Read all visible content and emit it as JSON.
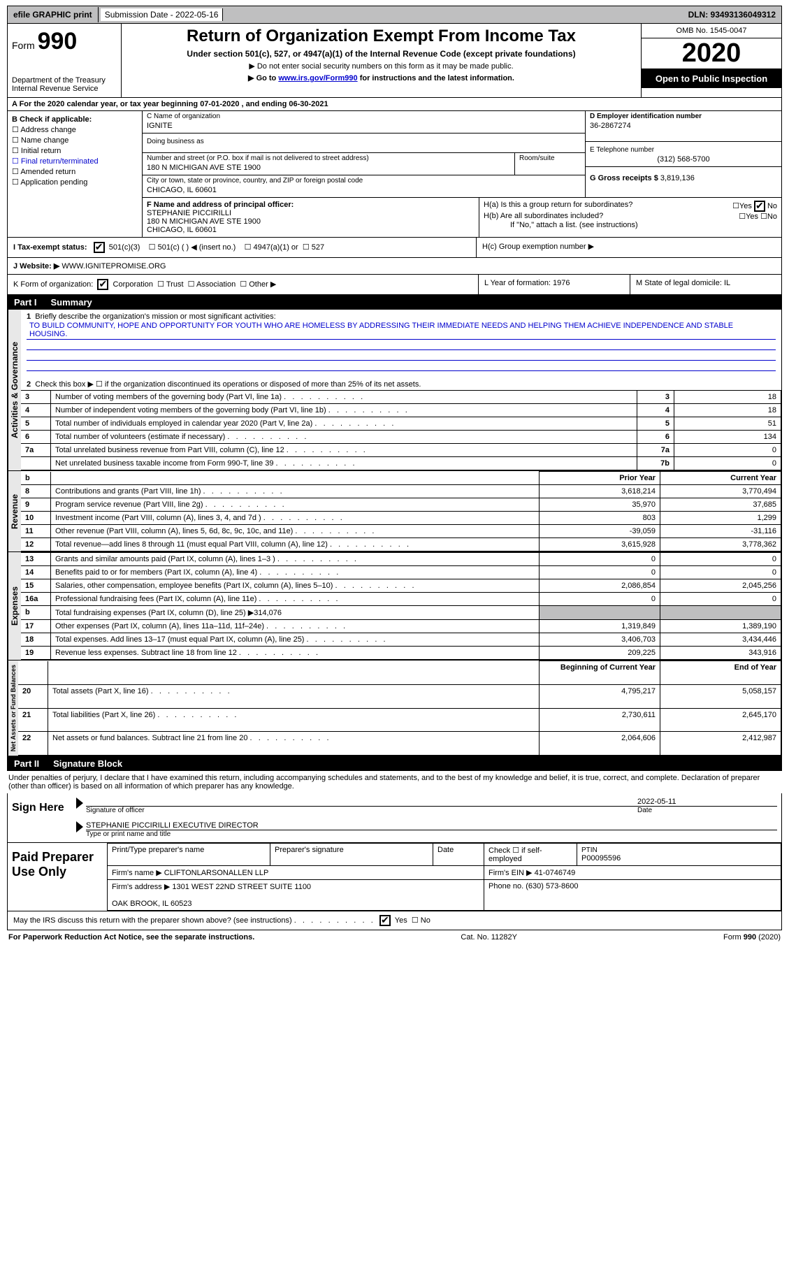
{
  "topbar": {
    "efile": "efile GRAPHIC print",
    "subdate_label": "Submission Date - 2022-05-16",
    "dln": "DLN: 93493136049312"
  },
  "header": {
    "formlabel": "Form",
    "formnum": "990",
    "dept": "Department of the Treasury\nInternal Revenue Service",
    "title": "Return of Organization Exempt From Income Tax",
    "subtitle": "Under section 501(c), 527, or 4947(a)(1) of the Internal Revenue Code (except private foundations)",
    "instr1": "▶ Do not enter social security numbers on this form as it may be made public.",
    "instr2_pre": "▶ Go to ",
    "instr2_link": "www.irs.gov/Form990",
    "instr2_post": " for instructions and the latest information.",
    "omb": "OMB No. 1545-0047",
    "year": "2020",
    "open": "Open to Public Inspection",
    "period": "A For the 2020 calendar year, or tax year beginning 07-01-2020    , and ending 06-30-2021"
  },
  "boxB": {
    "label": "B Check if applicable:",
    "opts": [
      "Address change",
      "Name change",
      "Initial return",
      "Final return/terminated",
      "Amended return",
      "Application pending"
    ],
    "color_term": "#0000cd"
  },
  "orgname_label": "C Name of organization",
  "orgname": "IGNITE",
  "dba_label": "Doing business as",
  "addr_label": "Number and street (or P.O. box if mail is not delivered to street address)",
  "addr": "180 N MICHIGAN AVE STE 1900",
  "room_label": "Room/suite",
  "city_label": "City or town, state or province, country, and ZIP or foreign postal code",
  "city": "CHICAGO, IL  60601",
  "ein_label": "D Employer identification number",
  "ein": "36-2867274",
  "phone_label": "E Telephone number",
  "phone": "(312) 568-5700",
  "gross_label": "G Gross receipts $ ",
  "gross": "3,819,136",
  "officer_label": "F  Name and address of principal officer:",
  "officer": "STEPHANIE PICCIRILLI\n180 N MICHIGAN AVE STE 1900\nCHICAGO, IL  60601",
  "Ha": "H(a)  Is this a group return for subordinates?",
  "Hb": "H(b)  Are all subordinates included?",
  "Hb_note": "If \"No,\" attach a list. (see instructions)",
  "Hc": "H(c)  Group exemption number ▶",
  "taxexempt": "I     Tax-exempt status:",
  "te_opts": [
    "501(c)(3)",
    "501(c) (  ) ◀ (insert no.)",
    "4947(a)(1) or",
    "527"
  ],
  "website_label": "J    Website: ▶",
  "website": " WWW.IGNITEPROMISE.ORG",
  "Kform": "K Form of organization:",
  "Kopts": [
    "Corporation",
    "Trust",
    "Association",
    "Other ▶"
  ],
  "Lyear": "L Year of formation: 1976",
  "Mstate": "M State of legal domicile: IL",
  "part1": "Part I",
  "part1_title": "Summary",
  "line1": "Briefly describe the organization's mission or most significant activities:",
  "mission": "TO BUILD COMMUNITY, HOPE AND OPPORTUNITY FOR YOUTH WHO ARE HOMELESS BY ADDRESSING THEIR IMMEDIATE NEEDS AND HELPING THEM ACHIEVE INDEPENDENCE AND STABLE HOUSING.",
  "line2": "Check this box ▶ ☐  if the organization discontinued its operations or disposed of more than 25% of its net assets.",
  "rows_a": [
    {
      "n": "3",
      "t": "Number of voting members of the governing body (Part VI, line 1a)",
      "k": "3",
      "v": "18"
    },
    {
      "n": "4",
      "t": "Number of independent voting members of the governing body (Part VI, line 1b)",
      "k": "4",
      "v": "18"
    },
    {
      "n": "5",
      "t": "Total number of individuals employed in calendar year 2020 (Part V, line 2a)",
      "k": "5",
      "v": "51"
    },
    {
      "n": "6",
      "t": "Total number of volunteers (estimate if necessary)",
      "k": "6",
      "v": "134"
    },
    {
      "n": "7a",
      "t": "Total unrelated business revenue from Part VIII, column (C), line 12",
      "k": "7a",
      "v": "0"
    },
    {
      "n": "",
      "t": "Net unrelated business taxable income from Form 990-T, line 39",
      "k": "7b",
      "v": "0"
    }
  ],
  "pyhdr": "Prior Year",
  "cyhdr": "Current Year",
  "rows_rev": [
    {
      "n": "8",
      "t": "Contributions and grants (Part VIII, line 1h)",
      "py": "3,618,214",
      "cy": "3,770,494"
    },
    {
      "n": "9",
      "t": "Program service revenue (Part VIII, line 2g)",
      "py": "35,970",
      "cy": "37,685"
    },
    {
      "n": "10",
      "t": "Investment income (Part VIII, column (A), lines 3, 4, and 7d )",
      "py": "803",
      "cy": "1,299"
    },
    {
      "n": "11",
      "t": "Other revenue (Part VIII, column (A), lines 5, 6d, 8c, 9c, 10c, and 11e)",
      "py": "-39,059",
      "cy": "-31,116"
    },
    {
      "n": "12",
      "t": "Total revenue—add lines 8 through 11 (must equal Part VIII, column (A), line 12)",
      "py": "3,615,928",
      "cy": "3,778,362"
    }
  ],
  "rows_exp": [
    {
      "n": "13",
      "t": "Grants and similar amounts paid (Part IX, column (A), lines 1–3 )",
      "py": "0",
      "cy": "0"
    },
    {
      "n": "14",
      "t": "Benefits paid to or for members (Part IX, column (A), line 4)",
      "py": "0",
      "cy": "0"
    },
    {
      "n": "15",
      "t": "Salaries, other compensation, employee benefits (Part IX, column (A), lines 5–10)",
      "py": "2,086,854",
      "cy": "2,045,256"
    },
    {
      "n": "16a",
      "t": "Professional fundraising fees (Part IX, column (A), line 11e)",
      "py": "0",
      "cy": "0"
    },
    {
      "n": "b",
      "t": "Total fundraising expenses (Part IX, column (D), line 25) ▶314,076",
      "py": "",
      "cy": "",
      "shade": true
    },
    {
      "n": "17",
      "t": "Other expenses (Part IX, column (A), lines 11a–11d, 11f–24e)",
      "py": "1,319,849",
      "cy": "1,389,190"
    },
    {
      "n": "18",
      "t": "Total expenses. Add lines 13–17 (must equal Part IX, column (A), line 25)",
      "py": "3,406,703",
      "cy": "3,434,446"
    },
    {
      "n": "19",
      "t": "Revenue less expenses. Subtract line 18 from line 12",
      "py": "209,225",
      "cy": "343,916"
    }
  ],
  "bycol": "Beginning of Current Year",
  "eoycol": "End of Year",
  "rows_net": [
    {
      "n": "20",
      "t": "Total assets (Part X, line 16)",
      "py": "4,795,217",
      "cy": "5,058,157"
    },
    {
      "n": "21",
      "t": "Total liabilities (Part X, line 26)",
      "py": "2,730,611",
      "cy": "2,645,170"
    },
    {
      "n": "22",
      "t": "Net assets or fund balances. Subtract line 21 from line 20",
      "py": "2,064,606",
      "cy": "2,412,987"
    }
  ],
  "part2": "Part II",
  "part2_title": "Signature Block",
  "penalties": "Under penalties of perjury, I declare that I have examined this return, including accompanying schedules and statements, and to the best of my knowledge and belief, it is true, correct, and complete. Declaration of preparer (other than officer) is based on all information of which preparer has any knowledge.",
  "sign_here": "Sign Here",
  "sig_officer_label": "Signature of officer",
  "sig_date_label": "Date",
  "sig_date": "2022-05-11",
  "sig_name": "STEPHANIE PICCIRILLI  EXECUTIVE DIRECTOR",
  "sig_name_label": "Type or print name and title",
  "paid": "Paid Preparer Use Only",
  "prep_name_label": "Print/Type preparer's name",
  "prep_sig_label": "Preparer's signature",
  "prep_date": "Date",
  "prep_check": "Check ☐  if self-employed",
  "ptin_label": "PTIN",
  "ptin": "P00095596",
  "firm_label": "Firm's name   ▶",
  "firm": " CLIFTONLARSONALLEN LLP",
  "firm_ein_label": "Firm's EIN ▶ ",
  "firm_ein": "41-0746749",
  "firm_addr_label": "Firm's address ▶",
  "firm_addr": "1301 WEST 22ND STREET SUITE 1100\n\nOAK BROOK, IL  60523",
  "firm_phone_label": "Phone no. ",
  "firm_phone": "(630) 573-8600",
  "discuss": "May the IRS discuss this return with the preparer shown above? (see instructions)",
  "foot_left": "For Paperwork Reduction Act Notice, see the separate instructions.",
  "foot_mid": "Cat. No. 11282Y",
  "foot_right": "Form 990 (2020)",
  "sidetabs": {
    "a": "Activities & Governance",
    "r": "Revenue",
    "e": "Expenses",
    "n": "Net Assets or Fund Balances"
  }
}
